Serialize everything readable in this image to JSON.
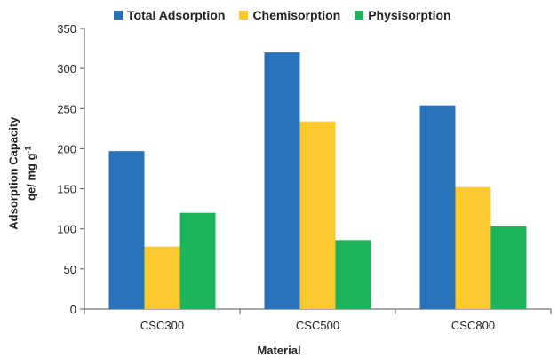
{
  "chart_data": {
    "type": "bar",
    "title": "",
    "xlabel": "Material",
    "ylabel_line1": "Adsorption Capacity",
    "ylabel_line2": "qe/ mg g",
    "ylabel_superscript": "-1",
    "categories": [
      "CSC300",
      "CSC500",
      "CSC800"
    ],
    "series": [
      {
        "name": "Total Adsorption",
        "color": "#2a72b8",
        "values": [
          197,
          320,
          254
        ]
      },
      {
        "name": "Chemisorption",
        "color": "#fcc92e",
        "values": [
          78,
          234,
          152
        ]
      },
      {
        "name": "Physisorption",
        "color": "#1db35b",
        "values": [
          120,
          86,
          103
        ]
      }
    ],
    "ylim": [
      0,
      350
    ],
    "yticks": [
      0,
      50,
      100,
      150,
      200,
      250,
      300,
      350
    ],
    "legend_position": "top",
    "grid": false
  }
}
